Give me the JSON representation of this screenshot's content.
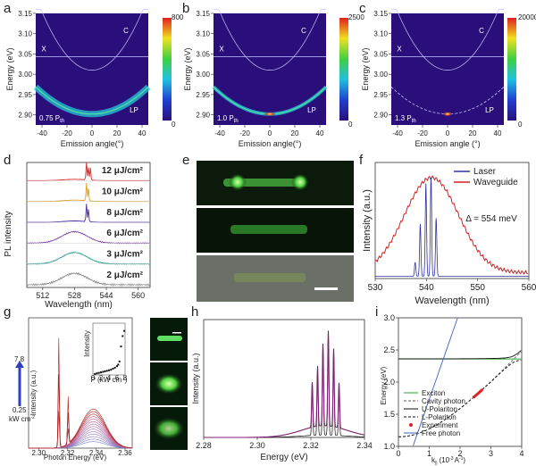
{
  "panels": {
    "a": {
      "label": "a",
      "pump_label": "0.75 P",
      "pump_sub": "th",
      "cbar_max": "800",
      "cbar_min": "0"
    },
    "b": {
      "label": "b",
      "pump_label": "1.0 P",
      "pump_sub": "th",
      "cbar_max": "2500",
      "cbar_min": "0"
    },
    "c": {
      "label": "c",
      "pump_label": "1.3 P",
      "pump_sub": "th",
      "cbar_max": "20000",
      "cbar_min": "0"
    },
    "d": {
      "label": "d",
      "ylabel": "PL intensity",
      "xlabel": "Wavelength (nm)"
    },
    "e": {
      "label": "e"
    },
    "f": {
      "label": "f"
    },
    "g": {
      "label": "g",
      "ylabel": "Intensity (a.u.)",
      "xlabel": "Photon Energy (eV)",
      "scale_top": "7.8",
      "scale_bottom": "0.25",
      "scale_unit": "kW cm",
      "inset_ylabel": "Intensity",
      "inset_xlabel": "P (kW cm"
    },
    "h": {
      "label": "h"
    },
    "i": {
      "label": "i"
    }
  },
  "dispersion": {
    "ylabel": "Energy (eV)",
    "xlabel": "Emission angle(°)",
    "xlabel_c": "Emission angle (°)",
    "exciton_label": "X",
    "cavity_label": "C",
    "lp_label": "LP",
    "yticks": [
      "3.15",
      "3.10",
      "3.05",
      "3.00",
      "2.95",
      "2.90"
    ],
    "xticks": [
      "-40",
      "-20",
      "0",
      "20",
      "40"
    ]
  },
  "chart_data": [
    {
      "type": "line",
      "panel": "d",
      "xlabel": "Wavelength (nm)",
      "ylabel": "PL intensity",
      "xticks": [
        512,
        528,
        544,
        560
      ],
      "xlim": [
        504,
        566
      ],
      "series": [
        {
          "name": "12 μJ/cm²",
          "color": "#d62728",
          "peaks": [
            534,
            535,
            536
          ]
        },
        {
          "name": "10 μJ/cm²",
          "color": "#e0a020",
          "peaks": [
            534,
            535
          ]
        },
        {
          "name": "8 μJ/cm²",
          "color": "#4b2ca0",
          "peaks": [
            534,
            535
          ]
        },
        {
          "name": "6 μJ/cm²",
          "color": "#7b3fa8",
          "center": 528
        },
        {
          "name": "3 μJ/cm²",
          "color": "#2a9d8f",
          "center": 528
        },
        {
          "name": "2 μJ/cm²",
          "color": "#888888",
          "center": 528
        }
      ]
    },
    {
      "type": "line",
      "panel": "f",
      "xlabel": "Wavelength (nm)",
      "ylabel": "Intensity (a.u.)",
      "xticks": [
        530,
        540,
        550,
        560
      ],
      "xlim": [
        530,
        560
      ],
      "series": [
        {
          "name": "Laser",
          "color": "#3030a0"
        },
        {
          "name": "Waveguide",
          "color": "#d02020"
        }
      ],
      "annotation": "Δ = 554 meV"
    },
    {
      "type": "line",
      "panel": "g",
      "xlabel": "Photon Energy (eV)",
      "ylabel": "Intensity (a.u.)",
      "xticks": [
        2.3,
        2.32,
        2.34,
        2.36
      ],
      "inset": {
        "xticks": [
          0,
          2,
          4,
          6,
          8
        ],
        "x": [
          0.5,
          1,
          1.5,
          2,
          2.5,
          3,
          3.5,
          4,
          4.5,
          5,
          5.5,
          6,
          6.3,
          6.6,
          7,
          7.4,
          7.8
        ],
        "y": [
          0.02,
          0.03,
          0.04,
          0.05,
          0.06,
          0.07,
          0.08,
          0.09,
          0.1,
          0.12,
          0.14,
          0.17,
          0.2,
          0.26,
          0.55,
          0.75,
          0.85
        ]
      }
    },
    {
      "type": "line",
      "panel": "h",
      "xlabel": "Energy (eV)",
      "ylabel": "Intensity (a.u.)",
      "xticks": [
        2.28,
        2.3,
        2.32,
        2.34
      ],
      "xlim": [
        2.28,
        2.34
      ]
    },
    {
      "type": "line",
      "panel": "i",
      "xlabel": "k",
      "xlabel_sub": "||",
      "xlabel_unit": "(10",
      "xlabel_unit2": "A",
      "ylabel": "Energy (eV)",
      "xlim": [
        0,
        4
      ],
      "ylim": [
        1.0,
        3.0
      ],
      "xticks": [
        0,
        1,
        2,
        3,
        4
      ],
      "yticks": [
        1.0,
        1.5,
        2.0,
        2.5,
        3.0
      ],
      "series": [
        {
          "name": "Exciton",
          "color": "#2ca02c",
          "style": "solid"
        },
        {
          "name": "Cavity photon",
          "color": "#555555",
          "style": "dashed"
        },
        {
          "name": "U-Polariton",
          "color": "#111111",
          "style": "solid"
        },
        {
          "name": "L-Polariton",
          "color": "#111111",
          "style": "dashed"
        },
        {
          "name": "Experiment",
          "color": "#e02020",
          "style": "marker"
        },
        {
          "name": "Free photon",
          "color": "#4060c0",
          "style": "solid"
        }
      ]
    }
  ],
  "colors": {
    "jet_bg": "#2a0f7a",
    "accent_red": "#d62728"
  }
}
